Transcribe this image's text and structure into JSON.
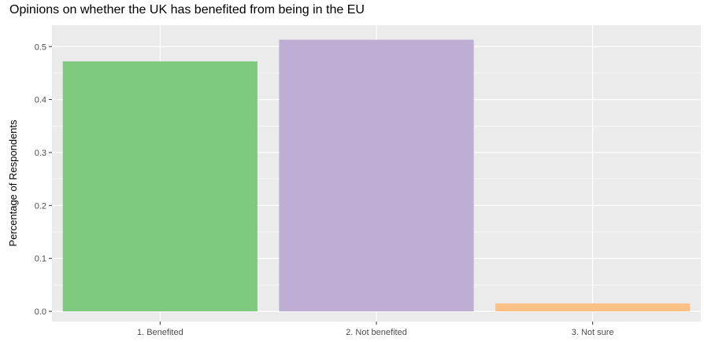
{
  "chart_data": {
    "type": "bar",
    "title": "Opinions on whether the UK has benefited from being in the EU",
    "xlabel": "",
    "ylabel": "Percentage of Respondents",
    "categories": [
      "1. Benefited",
      "2. Not benefited",
      "3. Not sure"
    ],
    "values": [
      0.472,
      0.513,
      0.015
    ],
    "colors": [
      "#7fc97f",
      "#beaed4",
      "#fdc086"
    ],
    "ylim": [
      0,
      0.52
    ],
    "yticks": [
      0.0,
      0.1,
      0.2,
      0.3,
      0.4,
      0.5
    ],
    "ytick_labels": [
      "0.0",
      "0.1",
      "0.2",
      "0.3",
      "0.4",
      "0.5"
    ],
    "grid": true,
    "legend": "none",
    "panel_background": "#ebebeb",
    "grid_color": "#ffffff"
  }
}
